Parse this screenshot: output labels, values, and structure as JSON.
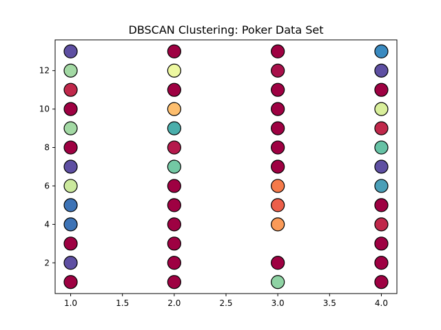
{
  "chart_data": {
    "type": "scatter",
    "title": "DBSCAN Clustering: Poker Data Set",
    "xlabel": "",
    "ylabel": "",
    "xlim": [
      0.85,
      4.15
    ],
    "ylim": [
      0.4,
      13.6
    ],
    "xticks": [
      1.0,
      1.5,
      2.0,
      2.5,
      3.0,
      3.5,
      4.0
    ],
    "xtick_labels": [
      "1.0",
      "1.5",
      "2.0",
      "2.5",
      "3.0",
      "3.5",
      "4.0"
    ],
    "yticks": [
      2,
      4,
      6,
      8,
      10,
      12
    ],
    "ytick_labels": [
      "2",
      "4",
      "6",
      "8",
      "10",
      "12"
    ],
    "grid": false,
    "marker_edge_color": "#000000",
    "points": [
      {
        "x": 1,
        "y": 13,
        "color": "#5e4fa2"
      },
      {
        "x": 1,
        "y": 12,
        "color": "#a3d9a4"
      },
      {
        "x": 1,
        "y": 11,
        "color": "#c0284b"
      },
      {
        "x": 1,
        "y": 10,
        "color": "#9e0142"
      },
      {
        "x": 1,
        "y": 9,
        "color": "#a3d9a4"
      },
      {
        "x": 1,
        "y": 8,
        "color": "#9e0142"
      },
      {
        "x": 1,
        "y": 7,
        "color": "#5e4fa2"
      },
      {
        "x": 1,
        "y": 6,
        "color": "#cbe99d"
      },
      {
        "x": 1,
        "y": 5,
        "color": "#3d73b6"
      },
      {
        "x": 1,
        "y": 4,
        "color": "#3d73b6"
      },
      {
        "x": 1,
        "y": 3,
        "color": "#9e0142"
      },
      {
        "x": 1,
        "y": 2,
        "color": "#5e4fa2"
      },
      {
        "x": 1,
        "y": 1,
        "color": "#9e0142"
      },
      {
        "x": 2,
        "y": 13,
        "color": "#9e0142"
      },
      {
        "x": 2,
        "y": 12,
        "color": "#edf8a0"
      },
      {
        "x": 2,
        "y": 11,
        "color": "#9e0142"
      },
      {
        "x": 2,
        "y": 10,
        "color": "#fdbe6e"
      },
      {
        "x": 2,
        "y": 9,
        "color": "#4aaeab"
      },
      {
        "x": 2,
        "y": 8,
        "color": "#b5194c"
      },
      {
        "x": 2,
        "y": 7,
        "color": "#73c8a4"
      },
      {
        "x": 2,
        "y": 6,
        "color": "#9e0142"
      },
      {
        "x": 2,
        "y": 5,
        "color": "#9e0142"
      },
      {
        "x": 2,
        "y": 4,
        "color": "#9e0142"
      },
      {
        "x": 2,
        "y": 3,
        "color": "#9e0142"
      },
      {
        "x": 2,
        "y": 2,
        "color": "#9e0142"
      },
      {
        "x": 2,
        "y": 1,
        "color": "#9e0142"
      },
      {
        "x": 3,
        "y": 13,
        "color": "#9e0142"
      },
      {
        "x": 3,
        "y": 12,
        "color": "#a8104a"
      },
      {
        "x": 3,
        "y": 11,
        "color": "#9e0142"
      },
      {
        "x": 3,
        "y": 10,
        "color": "#9e0142"
      },
      {
        "x": 3,
        "y": 9,
        "color": "#9e0142"
      },
      {
        "x": 3,
        "y": 8,
        "color": "#9e0142"
      },
      {
        "x": 3,
        "y": 7,
        "color": "#9e0142"
      },
      {
        "x": 3,
        "y": 6,
        "color": "#f57a4a"
      },
      {
        "x": 3,
        "y": 5,
        "color": "#ec5f4a"
      },
      {
        "x": 3,
        "y": 4,
        "color": "#fa9a58"
      },
      {
        "x": 3,
        "y": 2,
        "color": "#9e0142"
      },
      {
        "x": 3,
        "y": 1,
        "color": "#8fd3a4"
      },
      {
        "x": 4,
        "y": 13,
        "color": "#3a8ac0"
      },
      {
        "x": 4,
        "y": 12,
        "color": "#5e4fa2"
      },
      {
        "x": 4,
        "y": 11,
        "color": "#9e0142"
      },
      {
        "x": 4,
        "y": 10,
        "color": "#d9ef9b"
      },
      {
        "x": 4,
        "y": 9,
        "color": "#c0284b"
      },
      {
        "x": 4,
        "y": 8,
        "color": "#66c2a5"
      },
      {
        "x": 4,
        "y": 7,
        "color": "#5e4fa2"
      },
      {
        "x": 4,
        "y": 6,
        "color": "#4a9fb8"
      },
      {
        "x": 4,
        "y": 5,
        "color": "#9e0142"
      },
      {
        "x": 4,
        "y": 4,
        "color": "#c0284b"
      },
      {
        "x": 4,
        "y": 3,
        "color": "#9e0142"
      },
      {
        "x": 4,
        "y": 2,
        "color": "#9e0142"
      },
      {
        "x": 4,
        "y": 1,
        "color": "#9e0142"
      }
    ]
  }
}
